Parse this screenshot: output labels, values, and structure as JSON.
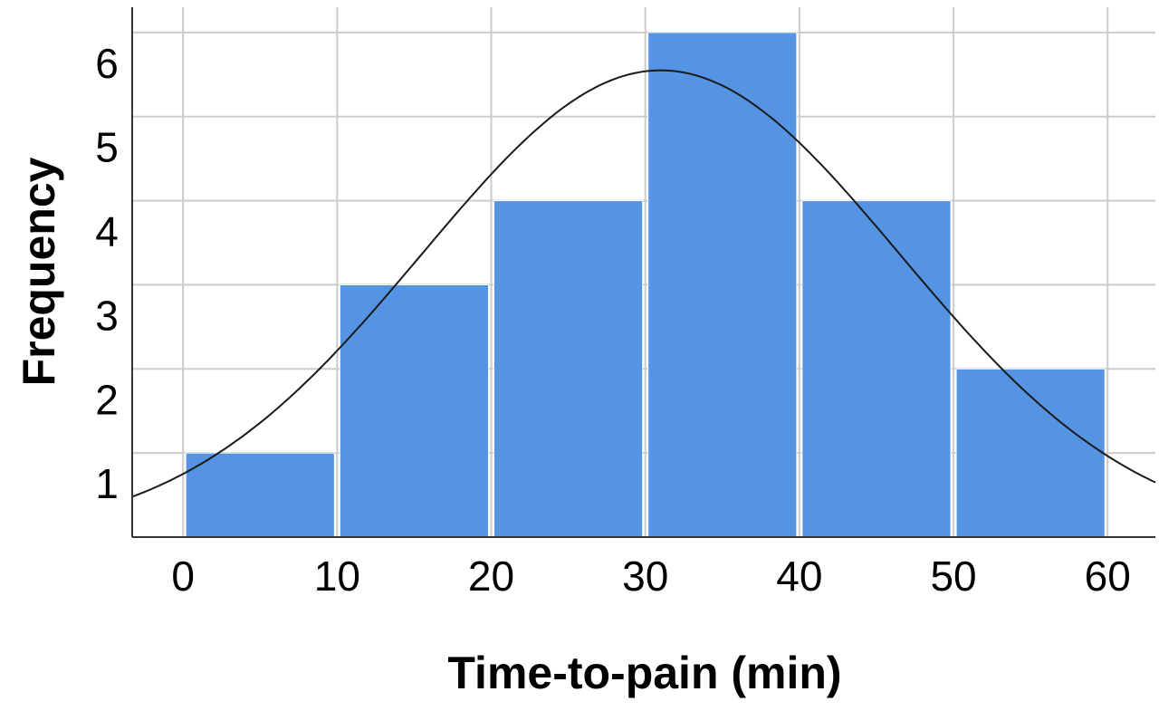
{
  "chart_data": {
    "type": "bar",
    "subtype": "histogram",
    "title": "",
    "xlabel": "Time-to-pain (min)",
    "ylabel": "Frequency",
    "bins": [
      {
        "start": 0,
        "end": 10,
        "count": 1
      },
      {
        "start": 10,
        "end": 20,
        "count": 3
      },
      {
        "start": 20,
        "end": 30,
        "count": 4
      },
      {
        "start": 30,
        "end": 40,
        "count": 6
      },
      {
        "start": 40,
        "end": 50,
        "count": 4
      },
      {
        "start": 50,
        "end": 60,
        "count": 2
      }
    ],
    "x_ticks": [
      0,
      10,
      20,
      30,
      40,
      50,
      60
    ],
    "y_ticks": [
      1,
      2,
      3,
      4,
      5,
      6
    ],
    "xlim": [
      -3.3,
      63.1
    ],
    "ylim": [
      0,
      6.3
    ],
    "normal_curve": {
      "mean": 31,
      "sd": 15.5,
      "peak": 5.55
    },
    "grid": true,
    "bar_color": "#5593e3",
    "curve_color": "#1a1a1a",
    "grid_color": "#cccccc"
  }
}
